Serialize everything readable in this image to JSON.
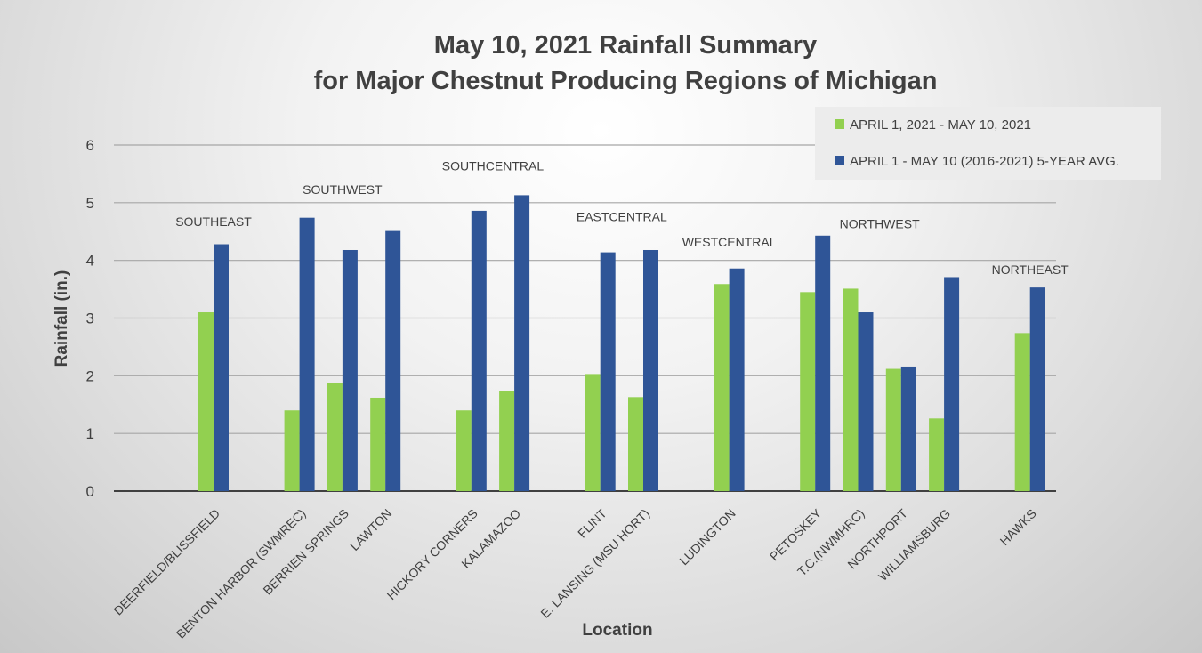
{
  "colors": {
    "series_current": "#92D050",
    "series_avg": "#2F5597",
    "grid": "#a6a6a6",
    "axis": "#404040",
    "text": "#404040",
    "legend_bg": "#ececec"
  },
  "chart_data": {
    "type": "bar",
    "title": [
      "May 10, 2021 Rainfall Summary",
      "for Major Chestnut Producing Regions of Michigan"
    ],
    "xlabel": "Location",
    "ylabel": "Rainfall (in.)",
    "ylim": [
      0,
      6
    ],
    "yticks": [
      0,
      1,
      2,
      3,
      4,
      5,
      6
    ],
    "grid": true,
    "legend_position": "top-right",
    "categories": [
      "DEERFIELD/BLISSFIELD",
      "BENTON HARBOR (SWMREC)",
      "BERRIEN SPRINGS",
      "LAWTON",
      "HICKORY CORNERS",
      "KALAMAZOO",
      "FLINT",
      "E. LANSING (MSU HORT)",
      "LUDINGTON",
      "PETOSKEY",
      "T.C.(NWMHRC)",
      "NORTHPORT",
      "WILLIAMSBURG",
      "HAWKS"
    ],
    "groups": [
      1,
      2,
      2,
      2,
      3,
      3,
      4,
      4,
      5,
      6,
      6,
      6,
      6,
      7
    ],
    "series": [
      {
        "name": "APRIL 1, 2021 - MAY 10, 2021",
        "values": [
          3.1,
          1.4,
          1.88,
          1.62,
          1.4,
          1.73,
          2.03,
          1.63,
          3.59,
          3.45,
          3.51,
          2.12,
          1.26,
          2.74
        ]
      },
      {
        "name": "APRIL 1 - MAY 10 (2016-2021) 5-YEAR AVG.",
        "values": [
          4.28,
          4.74,
          4.18,
          4.51,
          4.86,
          5.13,
          4.14,
          4.18,
          3.86,
          4.43,
          3.1,
          2.16,
          3.71,
          3.53
        ]
      }
    ],
    "annotations": [
      {
        "text": "SOUTHEAST",
        "category_index": 0,
        "y": 4.6
      },
      {
        "text": "SOUTHWEST",
        "category_index": 2,
        "y": 5.15
      },
      {
        "text": "SOUTHCENTRAL",
        "category_index": 4.5,
        "y": 5.56
      },
      {
        "text": "EASTCENTRAL",
        "category_index": 6.5,
        "y": 4.68
      },
      {
        "text": "WESTCENTRAL",
        "category_index": 8,
        "y": 4.24
      },
      {
        "text": "NORTHWEST",
        "category_index": 10.5,
        "y": 4.56
      },
      {
        "text": "NORTHEAST",
        "category_index": 13,
        "y": 3.76
      }
    ]
  }
}
